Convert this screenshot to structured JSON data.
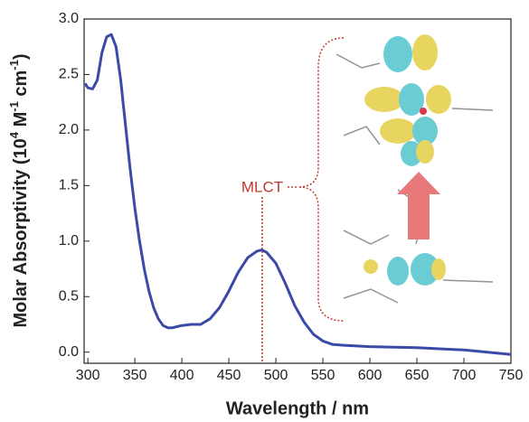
{
  "chart_data": {
    "type": "line",
    "x_label": "Wavelength / nm",
    "y_label_parts": [
      {
        "text": "Molar Absorptivity (10"
      },
      {
        "text": "4",
        "sup": true
      },
      {
        "text": " M"
      },
      {
        "text": "-1",
        "sup": true
      },
      {
        "text": " cm"
      },
      {
        "text": "-1",
        "sup": true
      },
      {
        "text": ")"
      }
    ],
    "annotation": "MLCT",
    "xlim": [
      296,
      750
    ],
    "xticks": [
      300,
      350,
      400,
      450,
      500,
      550,
      600,
      650,
      700,
      750
    ],
    "ylim": [
      -0.1,
      3.0
    ],
    "yticks": [
      {
        "value": 0,
        "label": "0.0"
      },
      0.5,
      {
        "value": 1,
        "label": "1.0"
      },
      1.5,
      {
        "value": 2,
        "label": "2.0"
      },
      2.5,
      {
        "value": 3,
        "label": "3.0"
      }
    ],
    "series": [
      {
        "color": "#3a4aa6",
        "x": [
          297,
          300,
          305,
          310,
          315,
          320,
          325,
          330,
          335,
          340,
          345,
          350,
          355,
          360,
          365,
          370,
          375,
          380,
          385,
          390,
          395,
          400,
          410,
          420,
          430,
          440,
          450,
          460,
          470,
          480,
          485,
          490,
          500,
          510,
          520,
          530,
          540,
          550,
          560,
          575,
          600,
          650,
          700,
          750
        ],
        "values": [
          2.42,
          2.38,
          2.37,
          2.45,
          2.7,
          2.84,
          2.86,
          2.75,
          2.45,
          2.05,
          1.65,
          1.3,
          1.0,
          0.75,
          0.55,
          0.4,
          0.3,
          0.24,
          0.22,
          0.22,
          0.23,
          0.24,
          0.25,
          0.25,
          0.3,
          0.4,
          0.55,
          0.72,
          0.85,
          0.91,
          0.92,
          0.9,
          0.8,
          0.62,
          0.42,
          0.27,
          0.16,
          0.1,
          0.07,
          0.06,
          0.05,
          0.04,
          0.02,
          -0.02
        ]
      }
    ]
  }
}
